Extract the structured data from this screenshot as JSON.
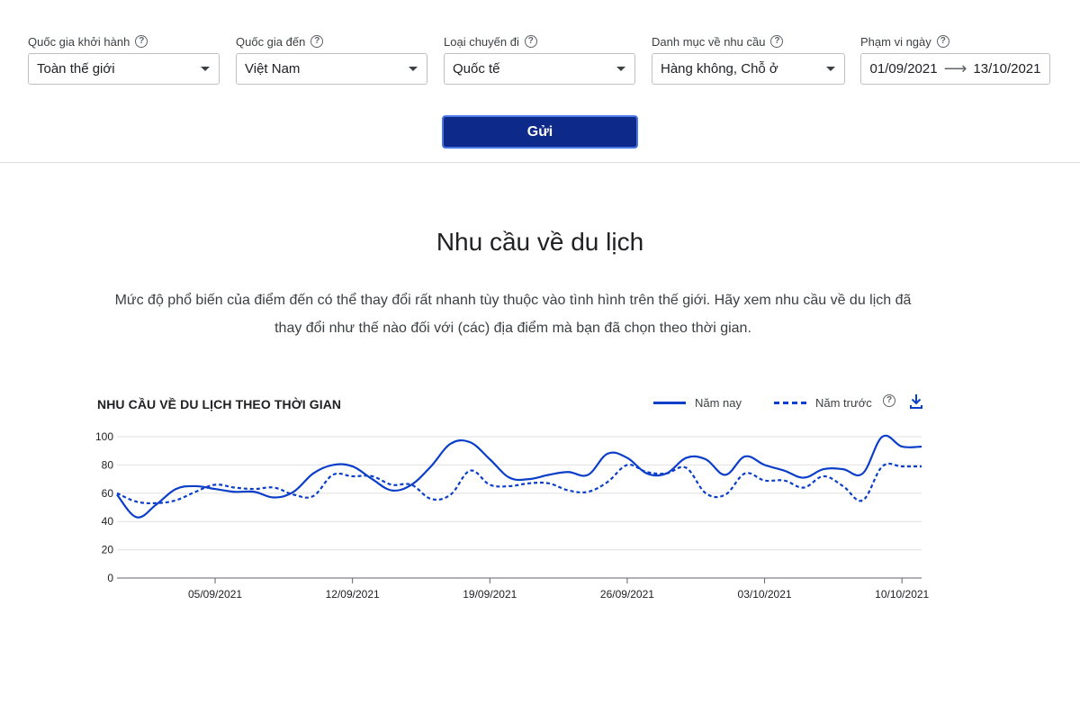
{
  "filters": [
    {
      "label": "Quốc gia khởi hành",
      "value": "Toàn thế giới"
    },
    {
      "label": "Quốc gia đến",
      "value": "Việt Nam"
    },
    {
      "label": "Loại chuyến đi",
      "value": "Quốc tế"
    },
    {
      "label": "Danh mục về nhu cầu",
      "value": "Hàng không, Chỗ ở"
    }
  ],
  "date_range": {
    "label": "Phạm vi ngày",
    "start": "01/09/2021",
    "end": "13/10/2021"
  },
  "submit_label": "Gửi",
  "section": {
    "title": "Nhu cầu về du lịch",
    "description_line1": "Mức độ phổ biến của điểm đến có thể thay đổi rất nhanh tùy thuộc vào tình hình trên thế giới. Hãy xem nhu cầu về du lịch đã",
    "description_line2": "thay đổi như thế nào đối với (các) địa điểm mà bạn đã chọn theo thời gian."
  },
  "colors": {
    "accent": "#0b3ec9",
    "button": "#0d2a8a"
  },
  "icons": {
    "help": "help-circle-icon",
    "dropdown": "chevron-down-icon",
    "download": "download-icon",
    "arrow": "arrow-right-icon"
  },
  "chart_data": {
    "type": "line",
    "title": "NHU CẦU VỀ DU LỊCH THEO THỜI GIAN",
    "x": [
      "31/08/2021",
      "01/09/2021",
      "02/09/2021",
      "03/09/2021",
      "04/09/2021",
      "05/09/2021",
      "06/09/2021",
      "07/09/2021",
      "08/09/2021",
      "09/09/2021",
      "10/09/2021",
      "11/09/2021",
      "12/09/2021",
      "13/09/2021",
      "14/09/2021",
      "15/09/2021",
      "16/09/2021",
      "17/09/2021",
      "18/09/2021",
      "19/09/2021",
      "20/09/2021",
      "21/09/2021",
      "22/09/2021",
      "23/09/2021",
      "24/09/2021",
      "25/09/2021",
      "26/09/2021",
      "27/09/2021",
      "28/09/2021",
      "29/09/2021",
      "30/09/2021",
      "01/10/2021",
      "02/10/2021",
      "03/10/2021",
      "04/10/2021",
      "05/10/2021",
      "06/10/2021",
      "07/10/2021",
      "08/10/2021",
      "09/10/2021",
      "10/10/2021",
      "11/10/2021"
    ],
    "x_tick_labels": [
      "05/09/2021",
      "12/09/2021",
      "19/09/2021",
      "26/09/2021",
      "03/10/2021",
      "10/10/2021"
    ],
    "series": [
      {
        "name": "Năm nay",
        "style": "solid",
        "values": [
          59,
          43,
          52,
          63,
          65,
          63,
          61,
          61,
          57,
          61,
          74,
          80,
          79,
          70,
          62,
          66,
          79,
          95,
          96,
          84,
          71,
          70,
          73,
          75,
          73,
          88,
          85,
          74,
          74,
          85,
          84,
          73,
          86,
          80,
          76,
          71,
          77,
          77,
          74,
          100,
          93,
          93
        ]
      },
      {
        "name": "Năm trước",
        "style": "dashed",
        "values": [
          60,
          54,
          53,
          55,
          61,
          66,
          64,
          63,
          64,
          59,
          58,
          73,
          72,
          72,
          66,
          66,
          56,
          59,
          76,
          66,
          65,
          67,
          67,
          62,
          61,
          68,
          80,
          75,
          74,
          78,
          60,
          59,
          74,
          69,
          69,
          64,
          72,
          65,
          55,
          79,
          79,
          79
        ]
      }
    ],
    "y_ticks": [
      0,
      20,
      40,
      60,
      80,
      100
    ],
    "ylim": [
      0,
      100
    ],
    "grid": true,
    "legend": "top-right"
  }
}
